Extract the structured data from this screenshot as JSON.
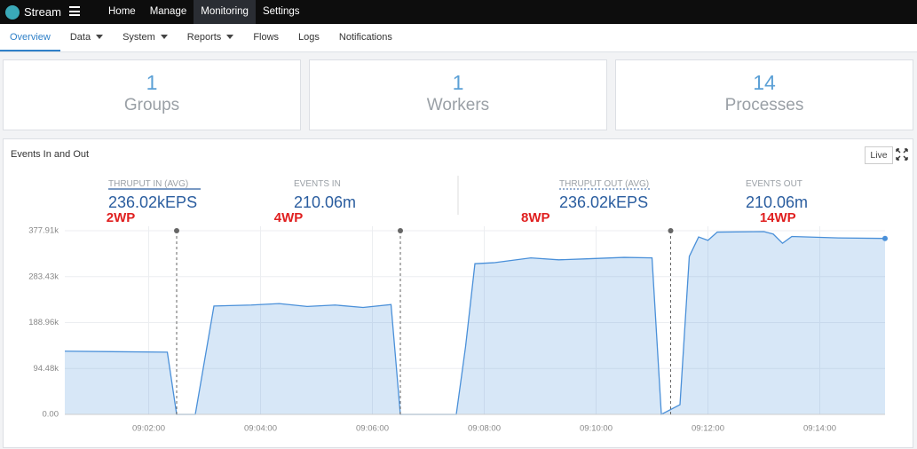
{
  "nav": {
    "brand": "Stream",
    "items": [
      "Home",
      "Manage",
      "Monitoring",
      "Settings"
    ],
    "active": 2
  },
  "tabs": {
    "items": [
      {
        "label": "Overview",
        "menu": false
      },
      {
        "label": "Data",
        "menu": true
      },
      {
        "label": "System",
        "menu": true
      },
      {
        "label": "Reports",
        "menu": true
      },
      {
        "label": "Flows",
        "menu": false
      },
      {
        "label": "Logs",
        "menu": false
      },
      {
        "label": "Notifications",
        "menu": false
      }
    ],
    "active": 0
  },
  "stats": [
    {
      "value": 1,
      "label": "Groups"
    },
    {
      "value": 1,
      "label": "Workers"
    },
    {
      "value": 14,
      "label": "Processes"
    }
  ],
  "panel": {
    "title": "Events In and Out",
    "live": "Live",
    "summary": [
      {
        "label": "THRUPUT IN (AVG)",
        "value": "236.02kEPS"
      },
      {
        "label": "EVENTS IN",
        "value": "210.06m"
      },
      {
        "label": "THRUPUT OUT (AVG)",
        "value": "236.02kEPS"
      },
      {
        "label": "EVENTS OUT",
        "value": "210.06m"
      }
    ]
  },
  "chart_data": {
    "type": "area",
    "color": "#4a90d9",
    "x": [
      "09:00:30",
      "09:02:20",
      "09:02:30",
      "09:02:50",
      "09:03:10",
      "09:03:50",
      "09:04:20",
      "09:04:50",
      "09:05:20",
      "09:05:50",
      "09:06:20",
      "09:06:30",
      "09:07:30",
      "09:07:40",
      "09:07:50",
      "09:08:10",
      "09:08:50",
      "09:09:20",
      "09:09:50",
      "09:10:30",
      "09:11:00",
      "09:11:10",
      "09:11:30",
      "09:11:40",
      "09:11:50",
      "09:12:00",
      "09:12:10",
      "09:13:00",
      "09:13:10",
      "09:13:20",
      "09:13:30",
      "09:14:20",
      "09:15:10"
    ],
    "values": [
      130000,
      128000,
      0,
      0,
      223000,
      225000,
      228000,
      222000,
      225000,
      220000,
      226000,
      0,
      0,
      140000,
      310000,
      312000,
      322000,
      318000,
      320000,
      323000,
      322000,
      0,
      20000,
      325000,
      365000,
      358000,
      375000,
      376000,
      371000,
      352000,
      366000,
      363000,
      362000
    ],
    "xlim": [
      "09:00:30",
      "09:15:10"
    ],
    "xticks": [
      "09:02:00",
      "09:04:00",
      "09:06:00",
      "09:08:00",
      "09:10:00",
      "09:12:00",
      "09:14:00"
    ],
    "ylim": [
      0,
      387000
    ],
    "yticks": [
      {
        "value": 0,
        "label": "0.00"
      },
      {
        "value": 94480,
        "label": "94.48k"
      },
      {
        "value": 188960,
        "label": "188.96k"
      },
      {
        "value": 283430,
        "label": "283.43k"
      },
      {
        "value": 377910,
        "label": "377.91k"
      }
    ],
    "grid": true,
    "markers": [
      "09:02:30",
      "09:06:30",
      "09:11:20"
    ],
    "annotations": [
      "2WP",
      "4WP",
      "8WP",
      "14WP"
    ]
  }
}
